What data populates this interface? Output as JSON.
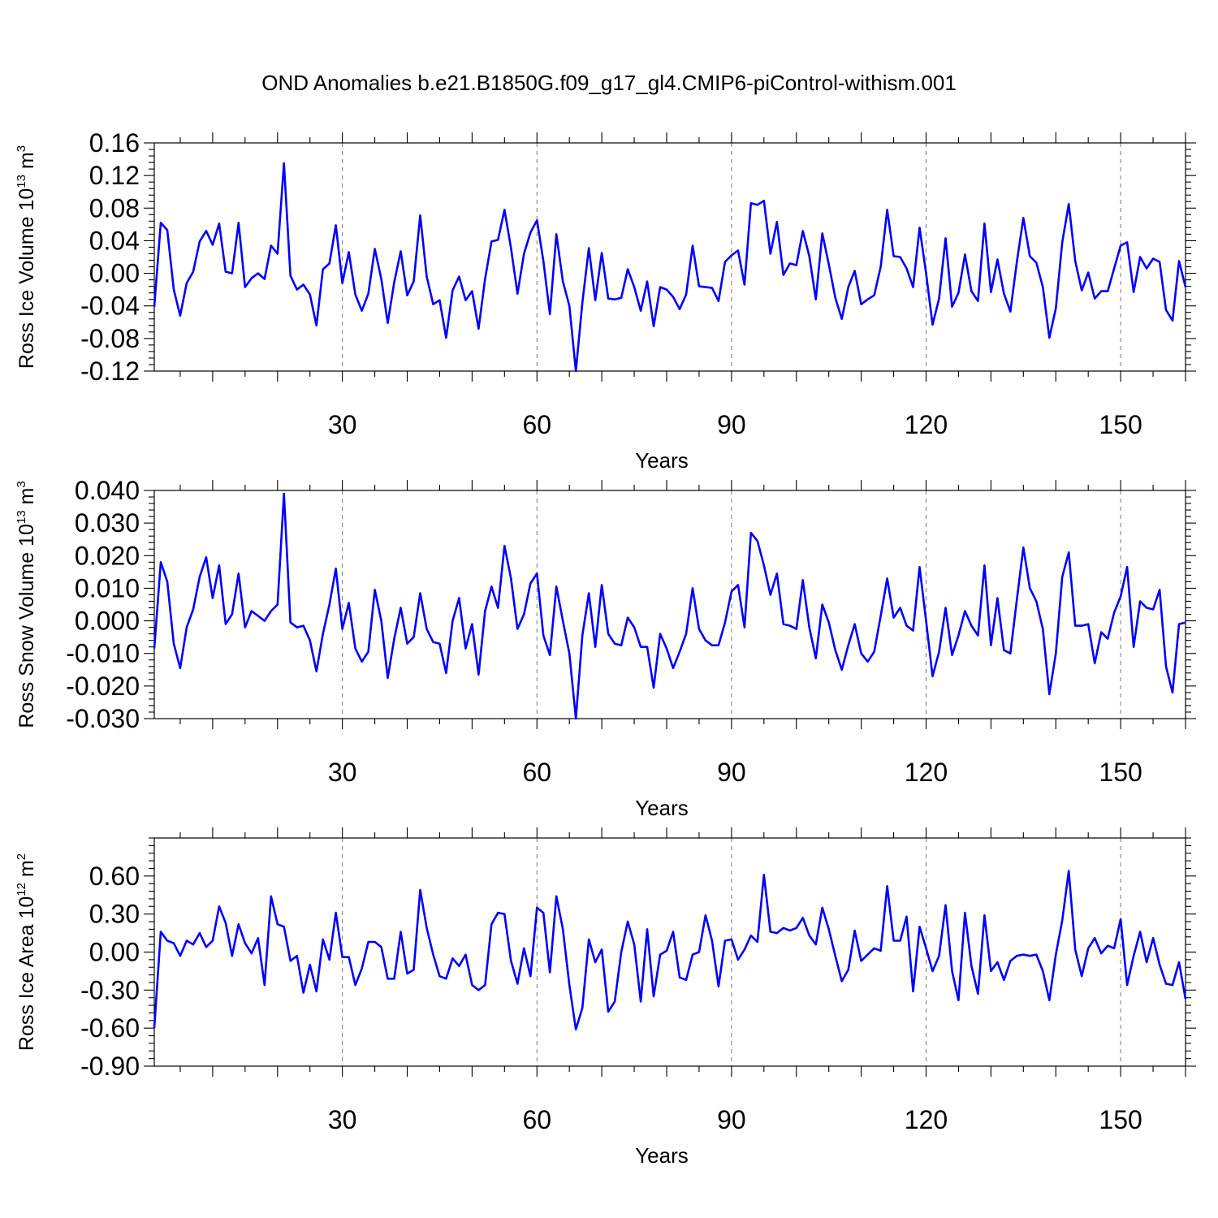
{
  "title": "OND Anomalies b.e21.B1850G.f09_g17_gl4.CMIP6-piControl-withism.001",
  "chart_data": [
    {
      "type": "line",
      "id": "ice-volume",
      "title": "",
      "xlabel": "Years",
      "ylabel": "Ross Ice Volume 10",
      "ylabel_sup": "13",
      "ylabel_unit": "m",
      "ylabel_unit_sup": "3",
      "xlim": [
        1,
        160
      ],
      "ylim": [
        -0.12,
        0.16
      ],
      "yticks": [
        "-0.12",
        "-0.08",
        "-0.04",
        "0.00",
        "0.04",
        "0.08",
        "0.12",
        "0.16"
      ],
      "xticks": [
        30,
        60,
        90,
        120,
        150
      ],
      "grid_x": true,
      "color": "#0000ff",
      "values": [
        -0.041,
        0.062,
        0.053,
        -0.02,
        -0.052,
        -0.012,
        0.002,
        0.039,
        0.052,
        0.035,
        0.061,
        0.002,
        0.0,
        0.062,
        -0.017,
        -0.006,
        0.0,
        -0.007,
        0.034,
        0.024,
        0.135,
        -0.003,
        -0.02,
        -0.014,
        -0.026,
        -0.064,
        0.005,
        0.012,
        0.059,
        -0.012,
        0.026,
        -0.026,
        -0.046,
        -0.025,
        0.03,
        -0.007,
        -0.061,
        -0.011,
        0.027,
        -0.027,
        -0.01,
        0.071,
        -0.004,
        -0.038,
        -0.033,
        -0.079,
        -0.021,
        -0.004,
        -0.033,
        -0.022,
        -0.068,
        -0.007,
        0.039,
        0.041,
        0.078,
        0.031,
        -0.025,
        0.024,
        0.05,
        0.065,
        0.015,
        -0.05,
        0.048,
        -0.01,
        -0.04,
        -0.12,
        -0.036,
        0.031,
        -0.033,
        0.025,
        -0.031,
        -0.032,
        -0.03,
        0.005,
        -0.017,
        -0.046,
        -0.01,
        -0.065,
        -0.017,
        -0.02,
        -0.029,
        -0.044,
        -0.026,
        0.034,
        -0.016,
        -0.017,
        -0.018,
        -0.034,
        0.014,
        0.022,
        0.028,
        -0.014,
        0.086,
        0.084,
        0.089,
        0.024,
        0.063,
        -0.002,
        0.012,
        0.01,
        0.052,
        0.021,
        -0.032,
        0.049,
        0.011,
        -0.03,
        -0.056,
        -0.017,
        0.003,
        -0.038,
        -0.032,
        -0.027,
        0.008,
        0.078,
        0.021,
        0.02,
        0.006,
        -0.017,
        0.056,
        0.0,
        -0.063,
        -0.031,
        0.043,
        -0.041,
        -0.024,
        0.023,
        -0.022,
        -0.034,
        0.061,
        -0.023,
        0.017,
        -0.025,
        -0.047,
        0.014,
        0.068,
        0.021,
        0.013,
        -0.017,
        -0.079,
        -0.043,
        0.038,
        0.085,
        0.015,
        -0.021,
        0.001,
        -0.031,
        -0.022,
        -0.022,
        0.006,
        0.034,
        0.038,
        -0.023,
        0.02,
        0.006,
        0.018,
        0.014,
        -0.045,
        -0.058,
        0.015,
        -0.017
      ]
    },
    {
      "type": "line",
      "id": "snow-volume",
      "title": "",
      "xlabel": "Years",
      "ylabel": "Ross Snow Volume 10",
      "ylabel_sup": "13",
      "ylabel_unit": "m",
      "ylabel_unit_sup": "3",
      "xlim": [
        1,
        160
      ],
      "ylim": [
        -0.03,
        0.04
      ],
      "yticks": [
        "-0.030",
        "-0.020",
        "-0.010",
        "0.000",
        "0.010",
        "0.020",
        "0.030",
        "0.040"
      ],
      "xticks": [
        30,
        60,
        90,
        120,
        150
      ],
      "grid_x": true,
      "color": "#0000ff",
      "values": [
        -0.0085,
        0.018,
        0.012,
        -0.007,
        -0.0145,
        -0.002,
        0.0035,
        0.0135,
        0.0195,
        0.007,
        0.017,
        -0.001,
        0.002,
        0.0145,
        -0.002,
        0.003,
        0.0015,
        0.0,
        0.003,
        0.005,
        0.039,
        -0.0005,
        -0.002,
        -0.0015,
        -0.006,
        -0.0155,
        -0.004,
        0.005,
        0.016,
        -0.0025,
        0.0055,
        -0.0085,
        -0.0125,
        -0.0095,
        0.0095,
        0.0,
        -0.0175,
        -0.0055,
        0.004,
        -0.007,
        -0.005,
        0.0085,
        -0.0025,
        -0.0065,
        -0.007,
        -0.016,
        0.0,
        0.007,
        -0.0085,
        -0.001,
        -0.0165,
        0.003,
        0.0105,
        0.004,
        0.023,
        0.013,
        -0.0025,
        0.002,
        0.0115,
        0.0145,
        -0.0045,
        -0.0105,
        0.0105,
        0.0,
        -0.01,
        -0.03,
        -0.0045,
        0.0085,
        -0.008,
        0.011,
        -0.004,
        -0.007,
        -0.0075,
        0.001,
        -0.002,
        -0.008,
        -0.008,
        -0.0205,
        -0.004,
        -0.0085,
        -0.0145,
        -0.0095,
        -0.004,
        0.01,
        -0.0025,
        -0.006,
        -0.0075,
        -0.0075,
        -0.0005,
        0.009,
        0.011,
        -0.002,
        0.027,
        0.0245,
        0.017,
        0.008,
        0.0145,
        -0.001,
        -0.0015,
        -0.0025,
        0.0125,
        -0.002,
        -0.0115,
        0.005,
        -0.0005,
        -0.009,
        -0.015,
        -0.0075,
        -0.001,
        -0.01,
        -0.0125,
        -0.0095,
        0.0015,
        0.013,
        0.001,
        0.004,
        -0.0015,
        -0.003,
        0.0165,
        0.0,
        -0.017,
        -0.0095,
        0.004,
        -0.0105,
        -0.0045,
        0.003,
        -0.0015,
        -0.0045,
        0.017,
        -0.0075,
        0.007,
        -0.009,
        -0.01,
        0.0065,
        0.0225,
        0.01,
        0.006,
        -0.0025,
        -0.0225,
        -0.01,
        0.0135,
        0.021,
        -0.0015,
        -0.0015,
        -0.001,
        -0.013,
        -0.0035,
        -0.0055,
        0.0025,
        0.0075,
        0.0165,
        -0.008,
        0.006,
        0.004,
        0.0035,
        0.0095,
        -0.014,
        -0.022,
        -0.001,
        -0.0005
      ]
    },
    {
      "type": "line",
      "id": "ice-area",
      "title": "",
      "xlabel": "Years",
      "ylabel": "Ross Ice Area 10",
      "ylabel_sup": "12",
      "ylabel_unit": "m",
      "ylabel_unit_sup": "2",
      "xlim": [
        1,
        160
      ],
      "ylim": [
        -0.9,
        0.9
      ],
      "yticks": [
        "-0.90",
        "-0.60",
        "-0.30",
        "0.00",
        "0.30",
        "0.60"
      ],
      "ytick_values": [
        -0.9,
        -0.6,
        -0.3,
        0.0,
        0.3,
        0.6
      ],
      "xticks": [
        30,
        60,
        90,
        120,
        150
      ],
      "grid_x": true,
      "color": "#0000ff",
      "values": [
        -0.6,
        0.16,
        0.09,
        0.07,
        -0.03,
        0.09,
        0.06,
        0.15,
        0.04,
        0.09,
        0.36,
        0.23,
        -0.03,
        0.22,
        0.07,
        -0.01,
        0.11,
        -0.26,
        0.44,
        0.22,
        0.2,
        -0.07,
        -0.03,
        -0.32,
        -0.1,
        -0.31,
        0.1,
        -0.06,
        0.31,
        -0.04,
        -0.04,
        -0.26,
        -0.13,
        0.08,
        0.08,
        0.04,
        -0.21,
        -0.21,
        0.16,
        -0.17,
        -0.14,
        0.49,
        0.19,
        -0.02,
        -0.19,
        -0.21,
        -0.05,
        -0.11,
        -0.02,
        -0.26,
        -0.3,
        -0.26,
        0.22,
        0.31,
        0.3,
        -0.07,
        -0.25,
        0.03,
        -0.19,
        0.35,
        0.31,
        -0.16,
        0.44,
        0.18,
        -0.26,
        -0.61,
        -0.44,
        0.1,
        -0.08,
        0.02,
        -0.47,
        -0.39,
        0.0,
        0.24,
        0.06,
        -0.39,
        0.18,
        -0.35,
        -0.02,
        0.01,
        0.16,
        -0.2,
        -0.22,
        -0.02,
        0.0,
        0.29,
        0.09,
        -0.27,
        0.09,
        0.1,
        -0.06,
        0.02,
        0.13,
        0.08,
        0.61,
        0.16,
        0.15,
        0.19,
        0.17,
        0.19,
        0.27,
        0.13,
        0.06,
        0.35,
        0.18,
        -0.03,
        -0.23,
        -0.14,
        0.17,
        -0.07,
        -0.02,
        0.03,
        0.01,
        0.52,
        0.09,
        0.09,
        0.28,
        -0.31,
        0.2,
        0.03,
        -0.15,
        -0.03,
        0.37,
        -0.15,
        -0.38,
        0.31,
        -0.11,
        -0.33,
        0.29,
        -0.15,
        -0.08,
        -0.22,
        -0.07,
        -0.03,
        -0.02,
        -0.03,
        -0.02,
        -0.15,
        -0.38,
        -0.02,
        0.25,
        0.64,
        0.02,
        -0.19,
        0.03,
        0.11,
        -0.01,
        0.05,
        0.03,
        0.26,
        -0.26,
        -0.03,
        0.16,
        -0.08,
        0.11,
        -0.1,
        -0.25,
        -0.26,
        -0.08,
        -0.37
      ]
    }
  ]
}
